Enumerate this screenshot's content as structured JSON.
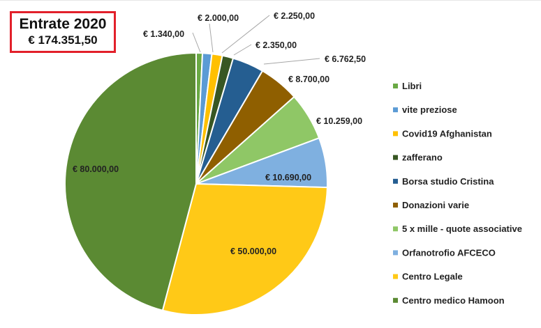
{
  "title": {
    "line1": "Entrate 2020",
    "line2": "€ 174.351,50"
  },
  "chart_data": {
    "type": "pie",
    "title": "Entrate 2020",
    "subtitle": "€ 174.351,50",
    "legend_position": "right",
    "series": [
      {
        "name": "Libri",
        "value": 1340.0,
        "label": "€ 1.340,00",
        "color": "#6aa944"
      },
      {
        "name": "vite preziose",
        "value": 2000.0,
        "label": "€ 2.000,00",
        "color": "#5b9bd5"
      },
      {
        "name": "Covid19 Afghanistan",
        "value": 2250.0,
        "label": "€ 2.250,00",
        "color": "#ffc000"
      },
      {
        "name": "zafferano",
        "value": 2350.0,
        "label": "€ 2.350,00",
        "color": "#385723"
      },
      {
        "name": "Borsa studio Cristina",
        "value": 6762.5,
        "label": "€ 6.762,50",
        "color": "#255e91"
      },
      {
        "name": "Donazioni varie",
        "value": 8700.0,
        "label": "€ 8.700,00",
        "color": "#8f5f00"
      },
      {
        "name": "5 x mille - quote associative",
        "value": 10259.0,
        "label": "€ 10.259,00",
        "color": "#8fc766"
      },
      {
        "name": "Orfanotrofio AFCECO",
        "value": 10690.0,
        "label": "€ 10.690,00",
        "color": "#7fb0e0"
      },
      {
        "name": "Centro Legale",
        "value": 50000.0,
        "label": "€ 50.000,00",
        "color": "#ffc917"
      },
      {
        "name": "Centro medico Hamoon",
        "value": 80000.0,
        "label": "€ 80.000,00",
        "color": "#5b8a33"
      }
    ]
  }
}
